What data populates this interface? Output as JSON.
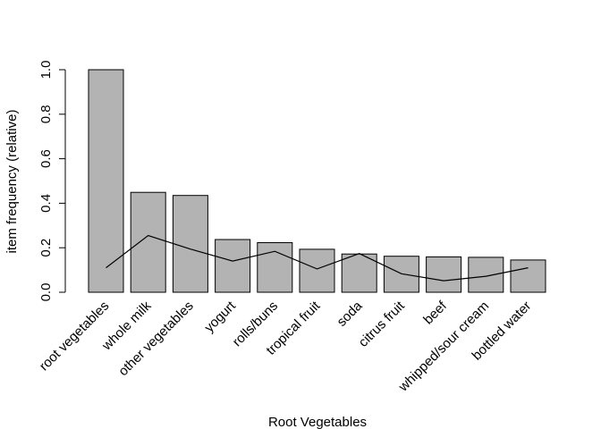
{
  "chart_data": {
    "type": "bar",
    "title": "",
    "xlabel": "Root Vegetables",
    "ylabel": "item frequency (relative)",
    "ylim": [
      0,
      1.0
    ],
    "yticks": [
      "0.0",
      "0.2",
      "0.4",
      "0.6",
      "0.8",
      "1.0"
    ],
    "grid": false,
    "categories": [
      "root vegetables",
      "whole milk",
      "other vegetables",
      "yogurt",
      "rolls/buns",
      "tropical fruit",
      "soda",
      "citrus fruit",
      "beef",
      "whipped/sour cream",
      "bottled water"
    ],
    "series": [
      {
        "type": "bar",
        "values": [
          1.0,
          0.449,
          0.435,
          0.237,
          0.223,
          0.193,
          0.172,
          0.162,
          0.159,
          0.157,
          0.145
        ]
      },
      {
        "type": "line",
        "values": [
          0.11,
          0.255,
          0.194,
          0.14,
          0.184,
          0.105,
          0.174,
          0.083,
          0.052,
          0.072,
          0.11
        ]
      }
    ]
  }
}
